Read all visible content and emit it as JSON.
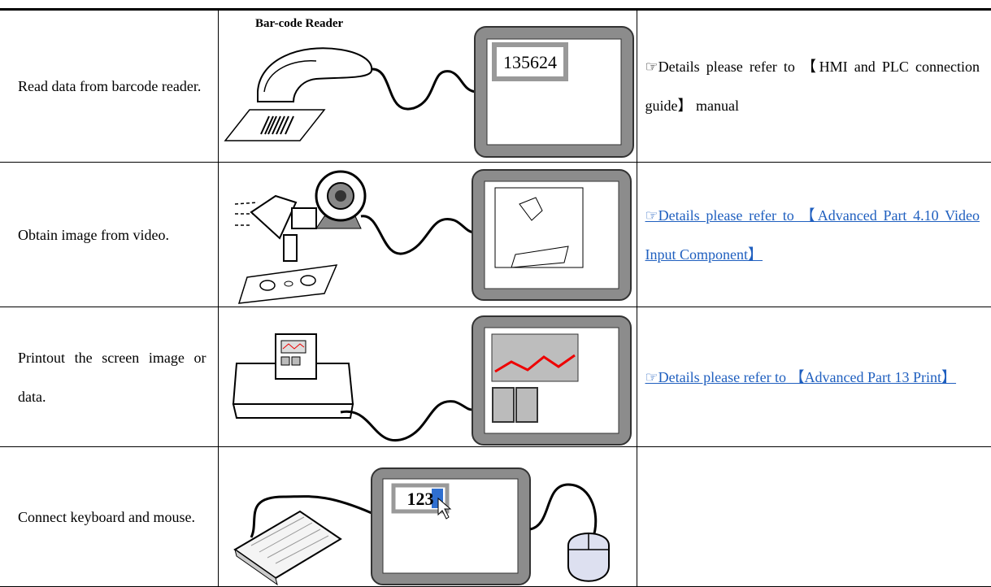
{
  "table": {
    "rows": [
      {
        "description": "Read data from barcode reader.",
        "label": "Bar-code Reader",
        "screen_value": "135624",
        "reference": "☞Details please refer to 【HMI and PLC connection guide】 manual"
      },
      {
        "description": "Obtain image from video.",
        "reference": "☞Details please refer to 【Advanced Part 4.10 Video Input Component】"
      },
      {
        "description": "Printout the screen image or data.",
        "reference": "☞Details please refer to 【Advanced Part 13 Print】"
      },
      {
        "description": "Connect keyboard and mouse.",
        "screen_value": "123"
      }
    ]
  }
}
